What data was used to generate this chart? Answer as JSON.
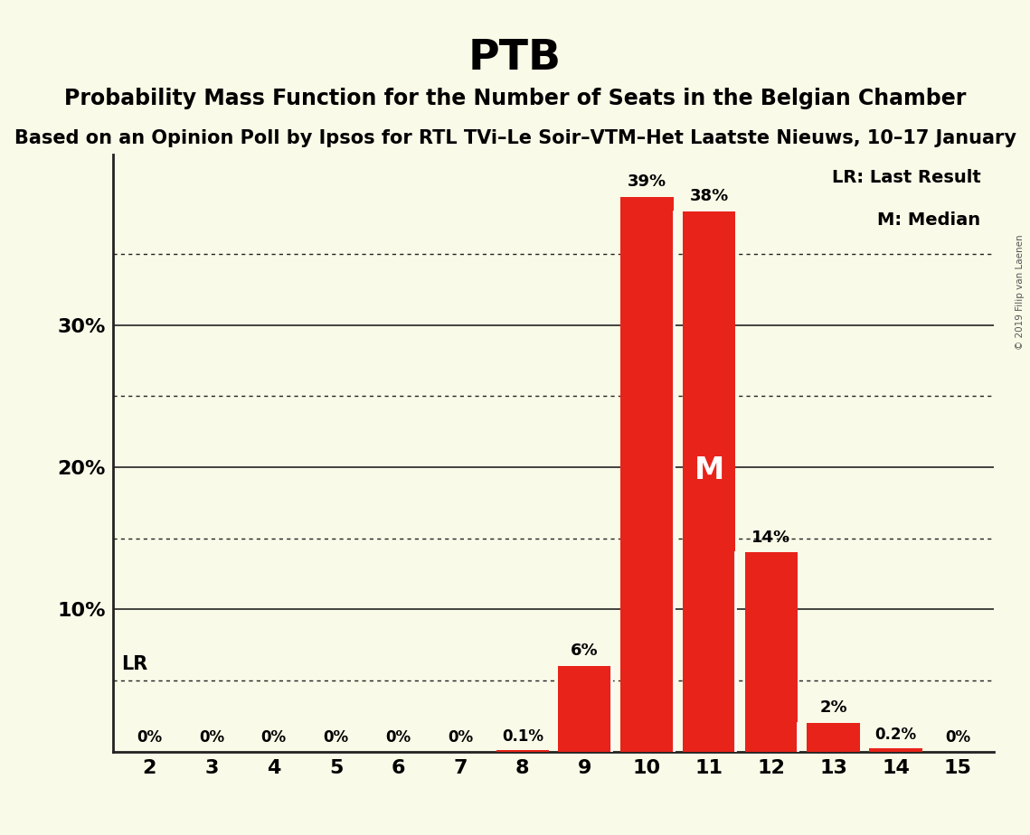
{
  "title": "PTB",
  "subtitle": "Probability Mass Function for the Number of Seats in the Belgian Chamber",
  "subsubtitle": "Based on an Opinion Poll by Ipsos for RTL TVi–Le Soir–VTM–Het Laatste Nieuws, 10–17 January",
  "copyright": "© 2019 Filip van Laenen",
  "seats": [
    2,
    3,
    4,
    5,
    6,
    7,
    8,
    9,
    10,
    11,
    12,
    13,
    14,
    15
  ],
  "probabilities": [
    0.0,
    0.0,
    0.0,
    0.0,
    0.0,
    0.0,
    0.001,
    0.06,
    0.39,
    0.38,
    0.14,
    0.02,
    0.002,
    0.0
  ],
  "bar_labels": [
    "0%",
    "0%",
    "0%",
    "0%",
    "0%",
    "0%",
    "0.1%",
    "6%",
    "39%",
    "38%",
    "14%",
    "2%",
    "0.2%",
    "0%"
  ],
  "bar_color": "#e8231a",
  "background_color": "#fafae8",
  "ylim": [
    0,
    0.42
  ],
  "lr_value": 0.05,
  "median_seat": 11,
  "legend_lr": "LR: Last Result",
  "legend_m": "M: Median",
  "title_fontsize": 34,
  "subtitle_fontsize": 17,
  "subsubtitle_fontsize": 15,
  "solid_gridlines": [
    0.1,
    0.2,
    0.3
  ],
  "dotted_gridlines": [
    0.05,
    0.15,
    0.25,
    0.35
  ],
  "ytick_positions": [
    0.1,
    0.2,
    0.3
  ],
  "ytick_labels": [
    "10%",
    "20%",
    "30%"
  ]
}
